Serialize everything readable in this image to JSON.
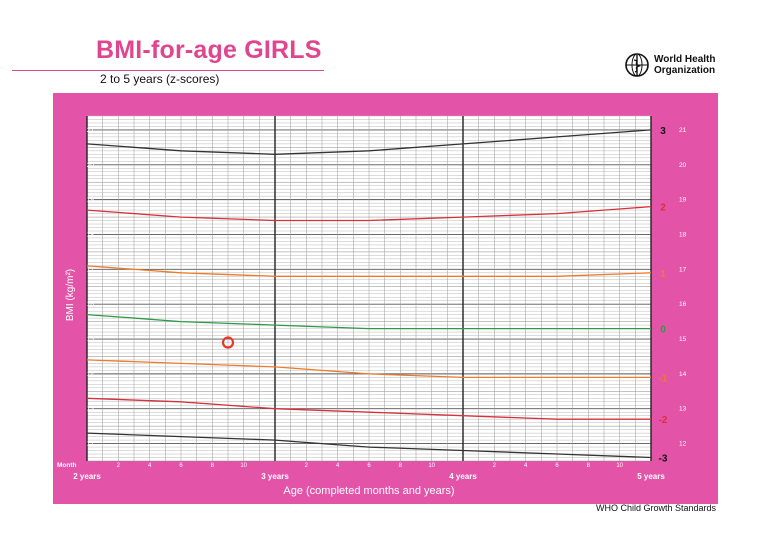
{
  "header": {
    "title": "BMI-for-age GIRLS",
    "subtitle": "2 to 5 years (z-scores)",
    "org_line1": "World Health",
    "org_line2": "Organization",
    "footer": "WHO Child Growth Standards"
  },
  "colors": {
    "accent": "#e0468f",
    "panel": "#e354a8",
    "grid_bg": "#ffffff",
    "z3": "#333333",
    "z2": "#d9303a",
    "z1": "#ee7a2a",
    "z0": "#2e9a48",
    "marker": "#e8352a"
  },
  "chart_data": {
    "type": "line",
    "title": "BMI-for-age GIRLS",
    "subtitle": "2 to 5 years (z-scores)",
    "xlabel": "Age (completed months and years)",
    "ylabel": "BMI (kg/m²)",
    "x_unit_label": "Month",
    "xlim": [
      0,
      36
    ],
    "ylim": [
      11.5,
      21.4
    ],
    "y_ticks": [
      12,
      13,
      14,
      15,
      16,
      17,
      18,
      19,
      20,
      21
    ],
    "x_month_ticks": [
      2,
      4,
      6,
      8,
      10,
      2,
      4,
      6,
      8,
      10,
      2,
      4,
      6,
      8,
      10
    ],
    "x_year_labels": [
      {
        "x": 0,
        "label": "2 years"
      },
      {
        "x": 12,
        "label": "3 years"
      },
      {
        "x": 24,
        "label": "4 years"
      },
      {
        "x": 36,
        "label": "5 years"
      }
    ],
    "grid": true,
    "series": [
      {
        "name": "3",
        "color": "#333333",
        "x": [
          0,
          6,
          12,
          18,
          24,
          30,
          36
        ],
        "y": [
          20.6,
          20.4,
          20.3,
          20.4,
          20.6,
          20.8,
          21.0
        ]
      },
      {
        "name": "2",
        "color": "#d9303a",
        "x": [
          0,
          6,
          12,
          18,
          24,
          30,
          36
        ],
        "y": [
          18.7,
          18.5,
          18.4,
          18.4,
          18.5,
          18.6,
          18.8
        ]
      },
      {
        "name": "1",
        "color": "#ee7a2a",
        "x": [
          0,
          6,
          12,
          18,
          24,
          30,
          36
        ],
        "y": [
          17.1,
          16.9,
          16.8,
          16.8,
          16.8,
          16.8,
          16.9
        ]
      },
      {
        "name": "0",
        "color": "#2e9a48",
        "x": [
          0,
          6,
          12,
          18,
          24,
          30,
          36
        ],
        "y": [
          15.7,
          15.5,
          15.4,
          15.3,
          15.3,
          15.3,
          15.3
        ]
      },
      {
        "name": "-1",
        "color": "#ee7a2a",
        "x": [
          0,
          6,
          12,
          18,
          24,
          30,
          36
        ],
        "y": [
          14.4,
          14.3,
          14.2,
          14.0,
          13.9,
          13.9,
          13.9
        ]
      },
      {
        "name": "-2",
        "color": "#d9303a",
        "x": [
          0,
          6,
          12,
          18,
          24,
          30,
          36
        ],
        "y": [
          13.3,
          13.2,
          13.0,
          12.9,
          12.8,
          12.7,
          12.7
        ]
      },
      {
        "name": "-3",
        "color": "#333333",
        "x": [
          0,
          6,
          12,
          18,
          24,
          30,
          36
        ],
        "y": [
          12.3,
          12.2,
          12.1,
          11.9,
          11.8,
          11.7,
          11.6
        ]
      }
    ],
    "marker": {
      "x": 9,
      "y": 14.9,
      "color": "#e8352a"
    }
  }
}
